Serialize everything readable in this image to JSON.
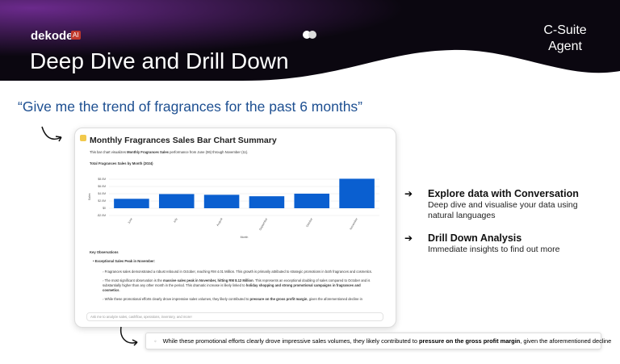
{
  "header": {
    "brand": "dekode",
    "badge": "AI",
    "title": "Deep Dive and Drill Down",
    "tag": "C-Suite Agent"
  },
  "quote": "“Give me the trend of fragrances for the past 6 months”",
  "card": {
    "title": "Monthly Fragrances Sales Bar Chart Summary",
    "description": [
      "This bar chart visualizes ",
      "Monthly Fragrances Sales",
      " performance from June (06) through November (11)."
    ]
  },
  "chart_data": {
    "type": "bar",
    "title": "Total Fragrances Sales by Month (2024)",
    "x_label": "Month",
    "y_label": "Sales",
    "categories": [
      "June",
      "July",
      "August",
      "September",
      "October",
      "November"
    ],
    "values": [
      2.6,
      3.9,
      3.7,
      3.3,
      4.01,
      8.12
    ],
    "color": "#0a5fd0",
    "ylim": [
      -2.2,
      8.5
    ],
    "yticks": [
      {
        "value": -2,
        "label": "-$2.0M"
      },
      {
        "value": 0,
        "label": "$0"
      },
      {
        "value": 2,
        "label": "$2.0M"
      },
      {
        "value": 4,
        "label": "$4.0M"
      },
      {
        "value": 6,
        "label": "$6.0M"
      },
      {
        "value": 8,
        "label": "$8.0M"
      }
    ],
    "grid": true
  },
  "observations": {
    "heading": "Key Observations",
    "bullet": "Exceptional Sales Peak in November:",
    "items": [
      [
        "Fragrances sales demonstrated a robust rebound in October, reaching RM 4.01 Million. This growth is primarily attributed to strategic promotions in both fragrances and cosmetics."
      ],
      [
        "The most significant observation is the ",
        "massive sales peak in November, hitting RM 8.12 Million",
        ". This represents an exceptional doubling of sales compared to October and is substantially higher than any other month in the period. This dramatic increase is likely linked to ",
        "holiday shopping and strong promotional campaigns in fragrances and cosmetics",
        "."
      ],
      [
        "While these promotional efforts clearly drove impressive sales volumes, they likely contributed to ",
        "pressure on the gross profit margin",
        ", given the aforementioned decline in"
      ]
    ]
  },
  "input_placeholder": "Ask me to analyze sales, cashflow, operations, inventory, and more!",
  "features": [
    {
      "title": "Explore data with Conversation",
      "text": "Deep dive and visualise your data using natural languages"
    },
    {
      "title": "Drill Down Analysis",
      "text": "Immediate insights to find out more"
    }
  ],
  "callout": [
    "While these promotional efforts clearly drove impressive sales volumes, they likely contributed to ",
    "pressure on the gross profit margin",
    ", given the aforementioned decline"
  ]
}
